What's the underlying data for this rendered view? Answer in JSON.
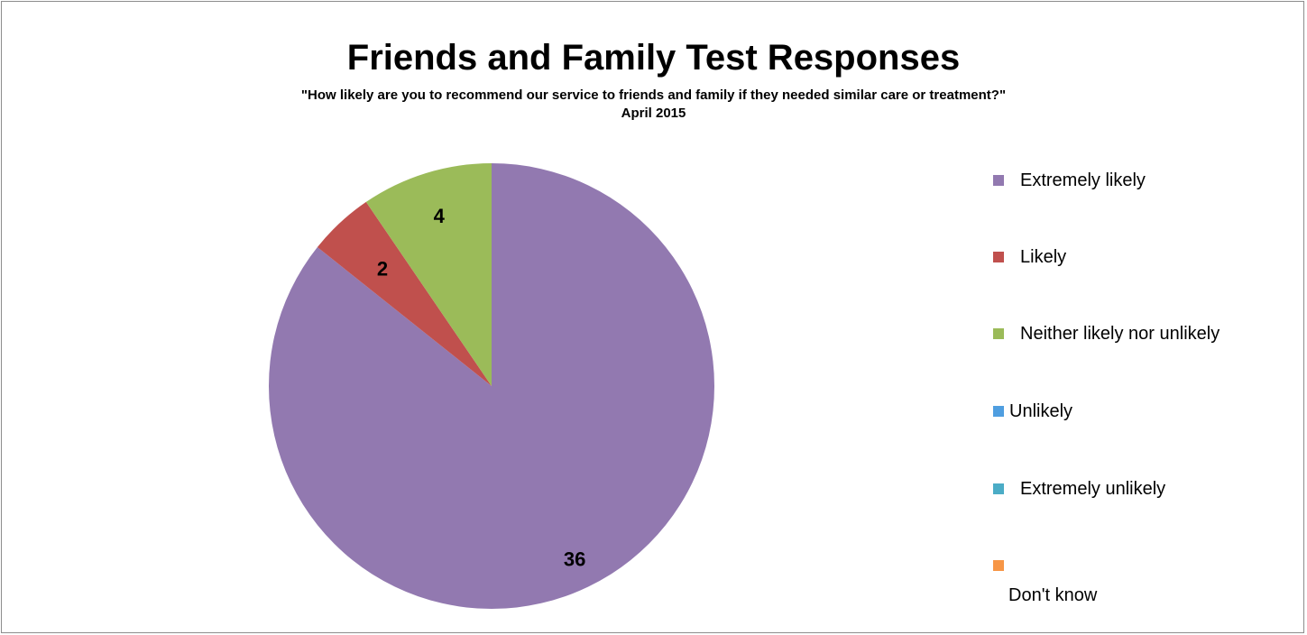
{
  "chart_data": {
    "type": "pie",
    "title": "Friends and Family Test Responses",
    "subtitle": "\"How likely are you to recommend our service to friends and family if they needed similar care or treatment?\"",
    "period": "April 2015",
    "slices": [
      {
        "label": "Extremely likely",
        "value": 36,
        "color": "#9279b0",
        "data_label": "36"
      },
      {
        "label": "Likely",
        "value": 2,
        "color": "#c0504d",
        "data_label": "2"
      },
      {
        "label": "Neither likely nor unlikely",
        "value": 4,
        "color": "#9bbb59",
        "data_label": "4"
      },
      {
        "label": "Unlikely",
        "value": 0,
        "color": "#4f9ee0",
        "data_label": ""
      },
      {
        "label": "Extremely unlikely",
        "value": 0,
        "color": "#4bacc6",
        "data_label": ""
      },
      {
        "label": "Don't know",
        "value": 0,
        "color": "#f79646",
        "data_label": ""
      }
    ],
    "legend_position": "right"
  }
}
